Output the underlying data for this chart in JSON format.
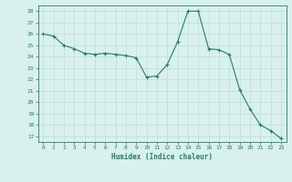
{
  "x": [
    0,
    1,
    2,
    3,
    4,
    5,
    6,
    7,
    8,
    9,
    10,
    11,
    12,
    13,
    14,
    15,
    16,
    17,
    18,
    19,
    20,
    21,
    22,
    23
  ],
  "y": [
    26.0,
    25.8,
    25.0,
    24.7,
    24.3,
    24.2,
    24.3,
    24.2,
    24.1,
    23.9,
    22.2,
    22.3,
    23.3,
    25.3,
    28.0,
    28.0,
    24.7,
    24.6,
    24.2,
    21.1,
    19.4,
    18.0,
    17.5,
    16.8
  ],
  "line_color": "#2a7a6a",
  "marker": "+",
  "marker_size": 3,
  "bg_color": "#d8f0ee",
  "grid_color": "#c0dcd8",
  "xlabel": "Humidex (Indice chaleur)",
  "ylabel_ticks": [
    17,
    18,
    19,
    20,
    21,
    22,
    23,
    24,
    25,
    26,
    27,
    28
  ],
  "xlim": [
    -0.5,
    23.5
  ],
  "ylim": [
    16.5,
    28.5
  ]
}
